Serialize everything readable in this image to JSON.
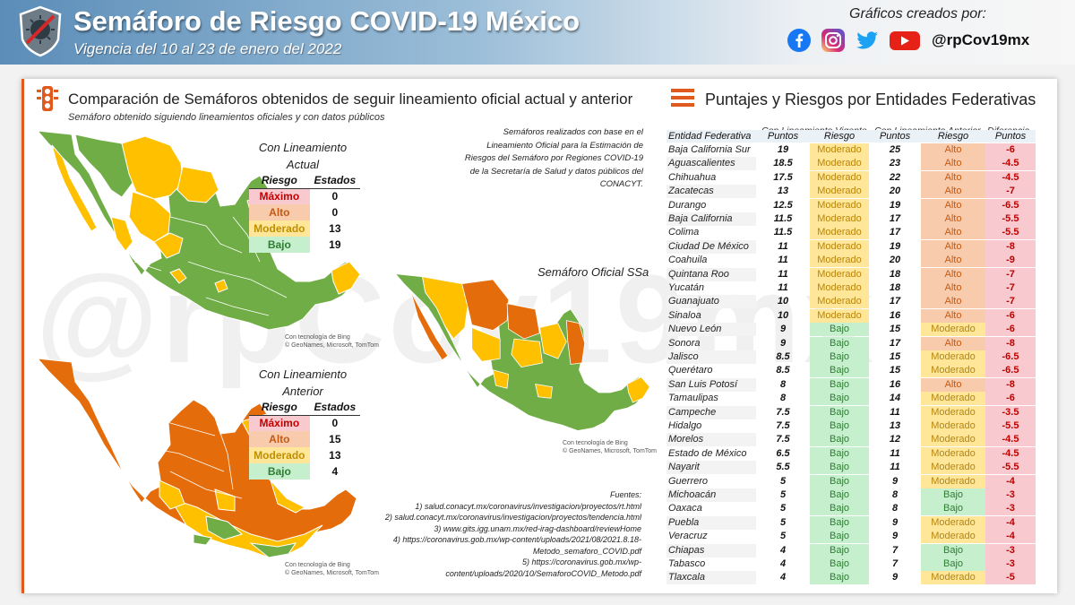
{
  "header": {
    "title": "Semáforo de Riesgo COVID-19 México",
    "subtitle": "Vigencia del 10 al 23 de enero del 2022",
    "credits_label": "Gráficos creados por:",
    "handle": "@rpCov19mx",
    "social_icons": [
      "facebook-icon",
      "instagram-icon",
      "twitter-icon",
      "youtube-icon"
    ]
  },
  "watermark": "@rpCov19mx",
  "left": {
    "heading": "Comparación de Semáforos obtenidos de seguir lineamiento oficial actual y anterior",
    "subheading": "Semáforo obtenido siguiendo lineamientos oficiales y con datos públicos",
    "note": "Semáforos realizados con base en el Lineamiento Oficial para la Estimación de Riesgos del Semáforo por Regiones COVID-19 de la Secretaría de Salud y datos públicos del CONACYT.",
    "ssa_label": "Semáforo Oficial SSa",
    "bing_line1": "Con tecnología de Bing",
    "bing_line2": "© GeoNames, Microsoft, TomTom",
    "fuentes": [
      "Fuentes:",
      "1) salud.conacyt.mx/coronavirus/investigacion/proyectos/rt.html",
      "2) salud.conacyt.mx/coronavirus/investigacion/proyectos/tendencia.html",
      "3) www.gits.igg.unam.mx/red-irag-dashboard/reviewHome",
      "4) https://coronavirus.gob.mx/wp-content/uploads/2021/08/2021.8.18-",
      "Metodo_semaforo_COVID.pdf",
      "5) https://coronavirus.gob.mx/wp-",
      "content/uploads/2020/10/SemaforoCOVID_Metodo.pdf"
    ],
    "actual": {
      "title_line1": "Con Lineamiento",
      "title_line2": "Actual",
      "head_riesgo": "Riesgo",
      "head_estados": "Estados",
      "rows": [
        {
          "riesgo": "Máximo",
          "estados": "0"
        },
        {
          "riesgo": "Alto",
          "estados": "0"
        },
        {
          "riesgo": "Moderado",
          "estados": "13"
        },
        {
          "riesgo": "Bajo",
          "estados": "19"
        }
      ]
    },
    "anterior": {
      "title_line1": "Con Lineamiento",
      "title_line2": "Anterior",
      "head_riesgo": "Riesgo",
      "head_estados": "Estados",
      "rows": [
        {
          "riesgo": "Máximo",
          "estados": "0"
        },
        {
          "riesgo": "Alto",
          "estados": "15"
        },
        {
          "riesgo": "Moderado",
          "estados": "13"
        },
        {
          "riesgo": "Bajo",
          "estados": "4"
        }
      ]
    }
  },
  "right": {
    "heading": "Puntajes y Riesgos por Entidades Federativas",
    "group_vigente": "Con Lineamiento Vigente",
    "group_anterior": "Con Lineamiento Anterior",
    "group_diff": "Diferencia",
    "col_entidad": "Entidad Federativa",
    "col_puntos": "Puntos",
    "col_riesgo": "Riesgo",
    "col_puntos2": "Puntos",
    "col_riesgo2": "Riesgo",
    "col_diff": "Puntos"
  },
  "colors": {
    "alto": "#e46c0a",
    "moderado": "#ffc000",
    "bajo": "#70ad47",
    "accent": "#e05a1d"
  },
  "chart_data": {
    "type": "table",
    "columns": [
      "Entidad Federativa",
      "Puntos (Vigente)",
      "Riesgo (Vigente)",
      "Puntos (Anterior)",
      "Riesgo (Anterior)",
      "Diferencia Puntos"
    ],
    "rows": [
      {
        "entidad": "Baja California Sur",
        "p1": "19",
        "r1": "Moderado",
        "p2": "25",
        "r2": "Alto",
        "d": "-6"
      },
      {
        "entidad": "Aguascalientes",
        "p1": "18.5",
        "r1": "Moderado",
        "p2": "23",
        "r2": "Alto",
        "d": "-4.5"
      },
      {
        "entidad": "Chihuahua",
        "p1": "17.5",
        "r1": "Moderado",
        "p2": "22",
        "r2": "Alto",
        "d": "-4.5"
      },
      {
        "entidad": "Zacatecas",
        "p1": "13",
        "r1": "Moderado",
        "p2": "20",
        "r2": "Alto",
        "d": "-7"
      },
      {
        "entidad": "Durango",
        "p1": "12.5",
        "r1": "Moderado",
        "p2": "19",
        "r2": "Alto",
        "d": "-6.5"
      },
      {
        "entidad": "Baja California",
        "p1": "11.5",
        "r1": "Moderado",
        "p2": "17",
        "r2": "Alto",
        "d": "-5.5"
      },
      {
        "entidad": "Colima",
        "p1": "11.5",
        "r1": "Moderado",
        "p2": "17",
        "r2": "Alto",
        "d": "-5.5"
      },
      {
        "entidad": "Ciudad De México",
        "p1": "11",
        "r1": "Moderado",
        "p2": "19",
        "r2": "Alto",
        "d": "-8"
      },
      {
        "entidad": "Coahuila",
        "p1": "11",
        "r1": "Moderado",
        "p2": "20",
        "r2": "Alto",
        "d": "-9"
      },
      {
        "entidad": "Quintana Roo",
        "p1": "11",
        "r1": "Moderado",
        "p2": "18",
        "r2": "Alto",
        "d": "-7"
      },
      {
        "entidad": "Yucatán",
        "p1": "11",
        "r1": "Moderado",
        "p2": "18",
        "r2": "Alto",
        "d": "-7"
      },
      {
        "entidad": "Guanajuato",
        "p1": "10",
        "r1": "Moderado",
        "p2": "17",
        "r2": "Alto",
        "d": "-7"
      },
      {
        "entidad": "Sinaloa",
        "p1": "10",
        "r1": "Moderado",
        "p2": "16",
        "r2": "Alto",
        "d": "-6"
      },
      {
        "entidad": "Nuevo León",
        "p1": "9",
        "r1": "Bajo",
        "p2": "15",
        "r2": "Moderado",
        "d": "-6"
      },
      {
        "entidad": "Sonora",
        "p1": "9",
        "r1": "Bajo",
        "p2": "17",
        "r2": "Alto",
        "d": "-8"
      },
      {
        "entidad": "Jalisco",
        "p1": "8.5",
        "r1": "Bajo",
        "p2": "15",
        "r2": "Moderado",
        "d": "-6.5"
      },
      {
        "entidad": "Querétaro",
        "p1": "8.5",
        "r1": "Bajo",
        "p2": "15",
        "r2": "Moderado",
        "d": "-6.5"
      },
      {
        "entidad": "San Luis Potosí",
        "p1": "8",
        "r1": "Bajo",
        "p2": "16",
        "r2": "Alto",
        "d": "-8"
      },
      {
        "entidad": "Tamaulipas",
        "p1": "8",
        "r1": "Bajo",
        "p2": "14",
        "r2": "Moderado",
        "d": "-6"
      },
      {
        "entidad": "Campeche",
        "p1": "7.5",
        "r1": "Bajo",
        "p2": "11",
        "r2": "Moderado",
        "d": "-3.5"
      },
      {
        "entidad": "Hidalgo",
        "p1": "7.5",
        "r1": "Bajo",
        "p2": "13",
        "r2": "Moderado",
        "d": "-5.5"
      },
      {
        "entidad": "Morelos",
        "p1": "7.5",
        "r1": "Bajo",
        "p2": "12",
        "r2": "Moderado",
        "d": "-4.5"
      },
      {
        "entidad": "Estado de México",
        "p1": "6.5",
        "r1": "Bajo",
        "p2": "11",
        "r2": "Moderado",
        "d": "-4.5"
      },
      {
        "entidad": "Nayarit",
        "p1": "5.5",
        "r1": "Bajo",
        "p2": "11",
        "r2": "Moderado",
        "d": "-5.5"
      },
      {
        "entidad": "Guerrero",
        "p1": "5",
        "r1": "Bajo",
        "p2": "9",
        "r2": "Moderado",
        "d": "-4"
      },
      {
        "entidad": "Michoacán",
        "p1": "5",
        "r1": "Bajo",
        "p2": "8",
        "r2": "Bajo",
        "d": "-3"
      },
      {
        "entidad": "Oaxaca",
        "p1": "5",
        "r1": "Bajo",
        "p2": "8",
        "r2": "Bajo",
        "d": "-3"
      },
      {
        "entidad": "Puebla",
        "p1": "5",
        "r1": "Bajo",
        "p2": "9",
        "r2": "Moderado",
        "d": "-4"
      },
      {
        "entidad": "Veracruz",
        "p1": "5",
        "r1": "Bajo",
        "p2": "9",
        "r2": "Moderado",
        "d": "-4"
      },
      {
        "entidad": "Chiapas",
        "p1": "4",
        "r1": "Bajo",
        "p2": "7",
        "r2": "Bajo",
        "d": "-3"
      },
      {
        "entidad": "Tabasco",
        "p1": "4",
        "r1": "Bajo",
        "p2": "7",
        "r2": "Bajo",
        "d": "-3"
      },
      {
        "entidad": "Tlaxcala",
        "p1": "4",
        "r1": "Bajo",
        "p2": "9",
        "r2": "Moderado",
        "d": "-5"
      }
    ]
  }
}
